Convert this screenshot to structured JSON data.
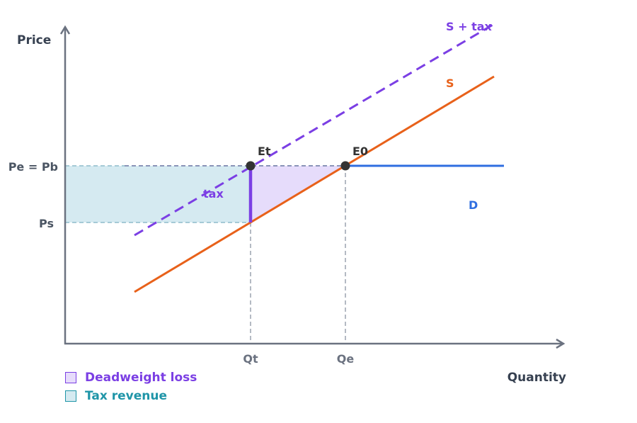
{
  "axes": {
    "y_label": "Price",
    "x_label": "Quantity"
  },
  "price_labels": {
    "pe_pb": "Pe = Pb",
    "ps": "Ps"
  },
  "quantity_labels": {
    "qt": "Qt",
    "qe": "Qe"
  },
  "curves": {
    "supply_tax": {
      "label": "S + tax",
      "color": "#7b3fe4"
    },
    "supply": {
      "label": "S",
      "color": "#e8611a"
    },
    "demand": {
      "label": "D",
      "color": "#2f6ee0"
    }
  },
  "points": {
    "et": "Et",
    "e0": "E0"
  },
  "tax_label": "tax",
  "legend": [
    {
      "label": "Deadweight loss",
      "color": "#7b3fe4",
      "fill": "#e6dcfb"
    },
    {
      "label": "Tax revenue",
      "color": "#1f95a8",
      "fill": "#d5eaf1"
    }
  ],
  "colors": {
    "axis": "#6b7280",
    "guide": "#9ca3af",
    "text": "#374151"
  }
}
